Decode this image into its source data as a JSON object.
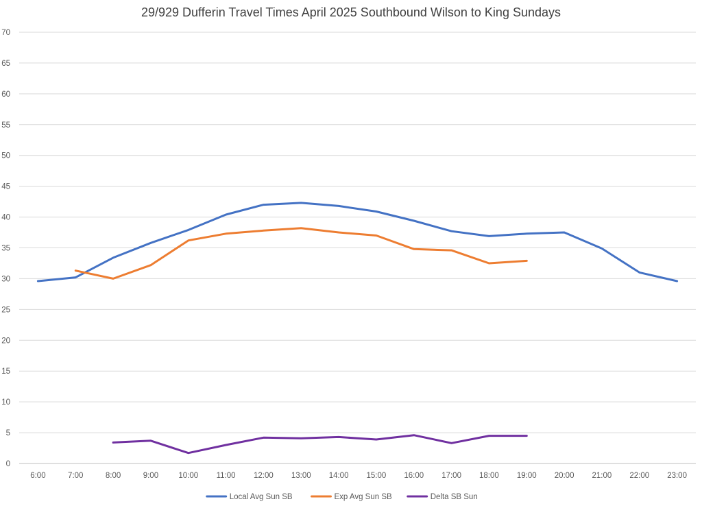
{
  "chart_data": {
    "type": "line",
    "title": "29/929 Dufferin Travel Times April 2025 Southbound Wilson to King Sundays",
    "xlabel": "",
    "ylabel": "",
    "categories": [
      "6:00",
      "7:00",
      "8:00",
      "9:00",
      "10:00",
      "11:00",
      "12:00",
      "13:00",
      "14:00",
      "15:00",
      "16:00",
      "17:00",
      "18:00",
      "19:00",
      "20:00",
      "21:00",
      "22:00",
      "23:00"
    ],
    "ylim": [
      0,
      70
    ],
    "yticks": [
      0,
      5,
      10,
      15,
      20,
      25,
      30,
      35,
      40,
      45,
      50,
      55,
      60,
      65,
      70
    ],
    "grid": "horizontal",
    "legend_position": "bottom",
    "series": [
      {
        "name": "Local Avg Sun SB",
        "color": "#4472c4",
        "values": [
          29.6,
          30.2,
          33.4,
          35.8,
          37.9,
          40.4,
          42.0,
          42.3,
          41.8,
          40.9,
          39.4,
          37.7,
          36.9,
          37.3,
          37.5,
          34.9,
          31.0,
          29.6
        ]
      },
      {
        "name": "Exp Avg Sun SB",
        "color": "#ed7d31",
        "values": [
          null,
          31.3,
          30.0,
          32.2,
          36.2,
          37.3,
          37.8,
          38.2,
          37.5,
          37.0,
          34.8,
          34.6,
          32.5,
          32.9,
          null,
          null,
          null,
          null
        ]
      },
      {
        "name": "Delta SB Sun",
        "color": "#7030a0",
        "values": [
          null,
          null,
          3.4,
          3.7,
          1.7,
          3.0,
          4.2,
          4.1,
          4.3,
          3.9,
          4.6,
          3.3,
          4.5,
          4.5,
          null,
          null,
          null,
          null
        ]
      }
    ]
  }
}
